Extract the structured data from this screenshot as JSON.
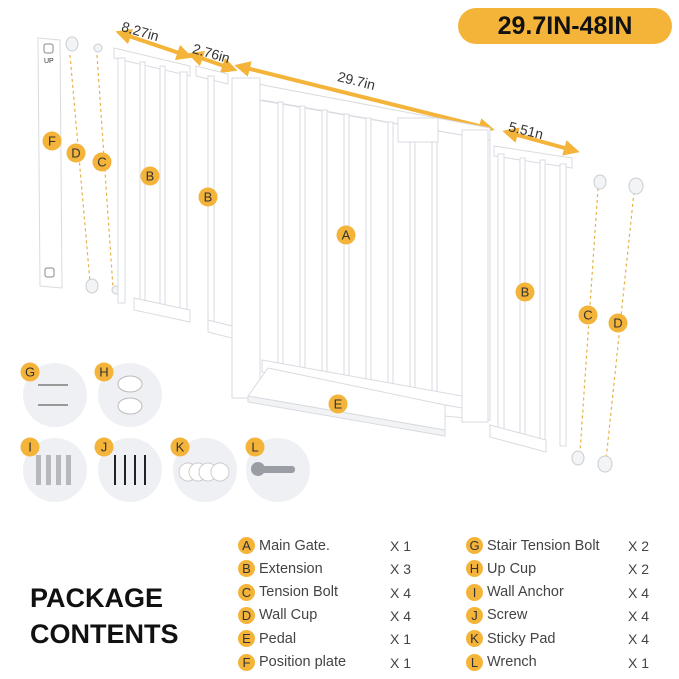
{
  "badge": "29.7IN-48IN",
  "dimensions": {
    "ext_large": "8.27in",
    "ext_small": "2.76in",
    "main": "29.7in",
    "ext_right": "5.51n"
  },
  "plate_text": "UP",
  "diagram_tags": {
    "F": "F",
    "D": "D",
    "C": "C",
    "B": "B",
    "A": "A",
    "E": "E",
    "G": "G",
    "H": "H",
    "I": "I",
    "J": "J",
    "K": "K",
    "L": "L"
  },
  "package": {
    "title_line1": "PACKAGE",
    "title_line2": "CONTENTS",
    "left": [
      {
        "letter": "A",
        "name": "Main Gate.",
        "qty": "X 1"
      },
      {
        "letter": "B",
        "name": "Extension",
        "qty": "X 3"
      },
      {
        "letter": "C",
        "name": "Tension Bolt",
        "qty": "X 4"
      },
      {
        "letter": "D",
        "name": "Wall Cup",
        "qty": "X 4"
      },
      {
        "letter": "E",
        "name": "Pedal",
        "qty": "X 1"
      },
      {
        "letter": "F",
        "name": "Position plate",
        "qty": "X 1"
      }
    ],
    "right": [
      {
        "letter": "G",
        "name": "Stair Tension Bolt",
        "qty": "X 2"
      },
      {
        "letter": "H",
        "name": "Up Cup",
        "qty": "X 2"
      },
      {
        "letter": "I",
        "name": "Wall Anchor",
        "qty": "X 4"
      },
      {
        "letter": "J",
        "name": "Screw",
        "qty": "X 4"
      },
      {
        "letter": "K",
        "name": "Sticky Pad",
        "qty": "X 4"
      },
      {
        "letter": "L",
        "name": "Wrench",
        "qty": "X 1"
      }
    ]
  },
  "colors": {
    "accent": "#f4b43a",
    "gate": "#ffffff",
    "outline": "#d8dbe0",
    "part_bg": "#eef0f3"
  }
}
